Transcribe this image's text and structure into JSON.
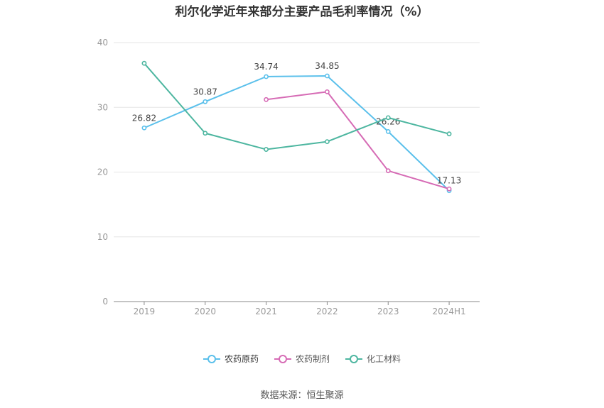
{
  "title": "利尔化学近年来部分主要产品毛利率情况（%）",
  "source": "数据来源：恒生聚源",
  "chart_data": {
    "type": "line",
    "title": "利尔化学近年来部分主要产品毛利率情况（%）",
    "categories": [
      "2019",
      "2020",
      "2021",
      "2022",
      "2023",
      "2024H1"
    ],
    "ylim": [
      0,
      40
    ],
    "yticks": [
      0,
      10,
      20,
      30,
      40
    ],
    "grid": true,
    "legend_position": "bottom",
    "series": [
      {
        "name": "农药原药",
        "color": "#5bc0eb",
        "values": [
          26.82,
          30.87,
          34.74,
          34.85,
          26.26,
          17.13
        ],
        "labels": [
          "26.82",
          "30.87",
          "34.74",
          "34.85",
          "26.26",
          "17.13"
        ]
      },
      {
        "name": "农药制剂",
        "color": "#d66bb5",
        "values": [
          null,
          null,
          31.2,
          32.4,
          20.2,
          17.4
        ],
        "labels": []
      },
      {
        "name": "化工材料",
        "color": "#4db6a0",
        "values": [
          36.8,
          26.0,
          23.5,
          24.7,
          28.4,
          25.9
        ],
        "labels": []
      }
    ]
  }
}
